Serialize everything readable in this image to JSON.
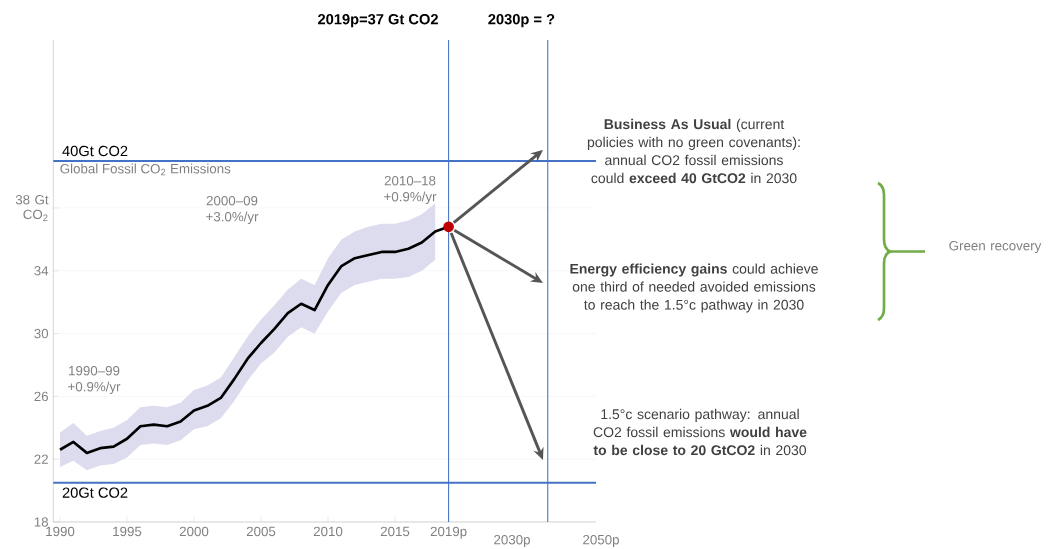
{
  "chart_data": {
    "type": "line",
    "subtitle": "Global Fossil CO$_{2}$ Emissions",
    "x": [
      1990,
      1991,
      1992,
      1993,
      1994,
      1995,
      1996,
      1997,
      1998,
      1999,
      2000,
      2001,
      2002,
      2003,
      2004,
      2005,
      2006,
      2007,
      2008,
      2009,
      2010,
      2011,
      2012,
      2013,
      2014,
      2015,
      2016,
      2017,
      2018,
      2019
    ],
    "series": [
      {
        "color": "#000000",
        "values": [
          22.6,
          23.1,
          22.4,
          22.7,
          22.8,
          23.3,
          24.1,
          24.2,
          24.1,
          24.4,
          25.1,
          25.4,
          25.9,
          27.1,
          28.4,
          29.4,
          30.3,
          31.3,
          31.9,
          31.5,
          33.1,
          34.3,
          34.8,
          35.0,
          35.2,
          35.2,
          35.4,
          35.8,
          36.5,
          36.8
        ],
        "upper": [
          23.7,
          24.3,
          23.5,
          23.8,
          24.0,
          24.5,
          25.3,
          25.4,
          25.3,
          25.6,
          26.4,
          26.7,
          27.2,
          28.5,
          29.8,
          30.9,
          31.8,
          32.8,
          33.5,
          33.1,
          34.8,
          36.0,
          36.5,
          36.8,
          37.0,
          37.0,
          37.2,
          37.6,
          38.3,
          null
        ],
        "lower": [
          21.5,
          21.9,
          21.3,
          21.6,
          21.7,
          22.1,
          22.9,
          23.0,
          22.9,
          23.2,
          23.9,
          24.1,
          24.6,
          25.7,
          27.0,
          28.1,
          28.8,
          29.8,
          30.4,
          30.0,
          31.4,
          32.6,
          33.1,
          33.3,
          33.5,
          33.5,
          33.6,
          34.0,
          34.7,
          null
        ]
      },
      {
        "type": "scatter",
        "color": "#c00000",
        "x": [
          2019
        ],
        "values": [
          36.8
        ]
      }
    ],
    "xlim": [
      1989.5,
      2030
    ],
    "ylim": [
      18,
      48.7
    ],
    "xticks": [
      1990,
      1995,
      2000,
      2005,
      2010,
      2015,
      {
        "value": 2019,
        "label": "2019p"
      }
    ],
    "yticks": [
      18,
      22,
      26,
      30,
      34,
      {
        "value": 38,
        "label": "38 Gt CO$_{2}$"
      }
    ],
    "grid": "y",
    "ref_lines": [
      {
        "axis": "x",
        "value": 2019,
        "label": "2019p=37 Gt CO2",
        "color": "#4472c4"
      },
      {
        "axis": "x",
        "value": 2026.4,
        "label": "2030p = ?",
        "color": "#4472c4"
      },
      {
        "axis": "y",
        "value": 41,
        "label": "40Gt CO2",
        "color": "#4472c4"
      },
      {
        "axis": "y",
        "value": 20.5,
        "label": "20Gt CO2",
        "color": "#4472c4"
      }
    ],
    "annotations": [
      "1990–99 +0.9%/yr",
      "2000–09 +3.0%/yr",
      "2010–18 +0.9%/yr",
      "**Business As Usual** (current policies with no green covenants): annual CO2 fossil emissions could **exceed 40 GtCO2** in 2030",
      "**Energy efficiency gains** could achieve one third of needed avoided emissions to reach the 1.5°c pathway in 2030",
      "1.5°c scenario pathway: annual CO2 fossil emissions **would have to be close to 20 GtCO2** in 2030",
      "Green recovery",
      "2030p",
      "2050p"
    ]
  }
}
